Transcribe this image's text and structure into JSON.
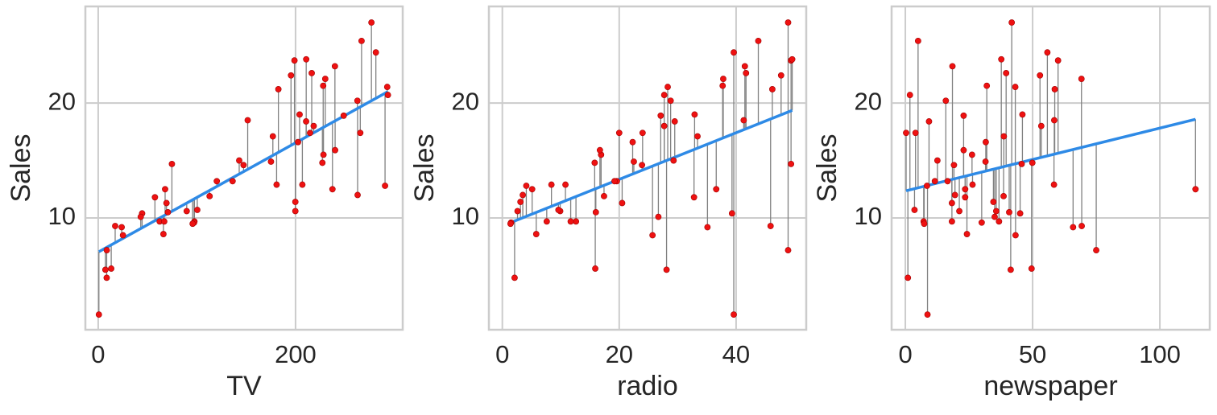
{
  "chart_data": [
    {
      "type": "scatter",
      "xlabel": "TV",
      "ylabel": "Sales",
      "xlim": [
        -13,
        308.6
      ],
      "ylim": [
        0.28,
        28.4
      ],
      "xticks": [
        0,
        200
      ],
      "yticks": [
        10,
        20
      ],
      "grid": true,
      "color": "#ee1111",
      "residual_color": "#808080",
      "fit": {
        "intercept": 7.0326,
        "slope": 0.04754,
        "color": "#2e8ae6"
      },
      "x": [
        230.1,
        44.5,
        17.2,
        151.5,
        180.8,
        8.7,
        57.5,
        120.2,
        8.6,
        199.8,
        66.1,
        214.7,
        23.8,
        97.5,
        204.1,
        195.4,
        67.8,
        281.4,
        69.2,
        147.3,
        218.4,
        237.4,
        13.2,
        228.3,
        62.3,
        262.9,
        142.9,
        240.1,
        248.8,
        70.6,
        292.9,
        112.9,
        97.2,
        265.6,
        95.7,
        290.7,
        266.9,
        74.7,
        43.1,
        228,
        202.5,
        177,
        293.6,
        206.9,
        25.1,
        175.1,
        89.7,
        239.9,
        227.2,
        66.9,
        199.8,
        100.4,
        216.4,
        182.6,
        262.7,
        198.9,
        7.3,
        136.2,
        210.8,
        210.7,
        0.7,
        276.9
      ],
      "values": [
        22.1,
        10.4,
        9.3,
        18.5,
        12.9,
        7.2,
        11.8,
        13.2,
        4.8,
        10.6,
        8.6,
        17.4,
        9.2,
        9.7,
        19,
        22.4,
        12.5,
        24.4,
        11.3,
        14.6,
        18,
        12.5,
        5.6,
        15.5,
        9.7,
        12,
        15,
        15.9,
        18.9,
        10.5,
        21.4,
        11.9,
        9.6,
        17.4,
        9.5,
        12.8,
        25.4,
        14.7,
        10.1,
        21.5,
        16.6,
        17.1,
        20.7,
        12.9,
        8.5,
        14.9,
        10.6,
        23.2,
        14.8,
        9.7,
        11.4,
        10.7,
        22.6,
        21.2,
        20.2,
        23.7,
        5.5,
        13.2,
        23.8,
        18.4,
        1.6,
        27
      ]
    },
    {
      "type": "scatter",
      "xlabel": "radio",
      "ylabel": "Sales",
      "xlim": [
        -2.3,
        52.0
      ],
      "ylim": [
        0.28,
        28.4
      ],
      "xticks": [
        0,
        20,
        40
      ],
      "yticks": [
        10,
        20
      ],
      "grid": true,
      "color": "#ee1111",
      "residual_color": "#808080",
      "fit": {
        "intercept": 9.312,
        "slope": 0.2025,
        "color": "#2e8ae6"
      },
      "x": [
        37.8,
        39.3,
        45.9,
        41.3,
        10.8,
        48.9,
        32.8,
        19.6,
        2.1,
        2.6,
        5.8,
        24,
        35.1,
        7.6,
        32.9,
        47.7,
        36.6,
        39.6,
        20.5,
        23.9,
        27.7,
        5.1,
        15.9,
        16.9,
        12.6,
        3.5,
        29.3,
        16.7,
        27.1,
        16,
        28.3,
        17.4,
        1.5,
        20,
        1.4,
        4.1,
        43.8,
        49.4,
        26.7,
        37.7,
        22.3,
        33.4,
        27.7,
        8.4,
        25.7,
        22.5,
        9.9,
        41.5,
        15.8,
        11.7,
        3.1,
        9.6,
        41.7,
        46.2,
        28.8,
        49.4,
        28.1,
        19.2,
        49.6,
        29.5,
        39.6,
        48.9
      ],
      "values": [
        22.1,
        10.4,
        9.3,
        18.5,
        12.9,
        7.2,
        11.8,
        13.2,
        4.8,
        10.6,
        8.6,
        17.4,
        9.2,
        9.7,
        19,
        22.4,
        12.5,
        24.4,
        11.3,
        14.6,
        18,
        12.5,
        5.6,
        15.5,
        9.7,
        12,
        15,
        15.9,
        18.9,
        10.5,
        21.4,
        11.9,
        9.6,
        17.4,
        9.5,
        12.8,
        25.4,
        14.7,
        10.1,
        21.5,
        16.6,
        17.1,
        20.7,
        12.9,
        8.5,
        14.9,
        10.6,
        23.2,
        14.8,
        9.7,
        11.4,
        10.7,
        22.6,
        21.2,
        20.2,
        23.7,
        5.5,
        13.2,
        23.8,
        18.4,
        1.6,
        27
      ]
    },
    {
      "type": "scatter",
      "xlabel": "newspaper",
      "ylabel": "Sales",
      "xlim": [
        -5.4,
        119.6
      ],
      "ylim": [
        0.28,
        28.4
      ],
      "xticks": [
        0,
        50,
        100
      ],
      "yticks": [
        10,
        20
      ],
      "grid": true,
      "color": "#ee1111",
      "residual_color": "#808080",
      "fit": {
        "intercept": 12.351,
        "slope": 0.0547,
        "color": "#2e8ae6"
      },
      "x": [
        69.2,
        45.1,
        69.3,
        58.5,
        58.4,
        75,
        23.5,
        11.6,
        1,
        21.2,
        24.2,
        4,
        65.9,
        7.2,
        46,
        52.9,
        114,
        55.8,
        18.3,
        19.1,
        53.4,
        23.5,
        49.6,
        26.2,
        18.3,
        19.5,
        12.6,
        22.9,
        22.9,
        40.8,
        43.2,
        38.6,
        30,
        0.3,
        7.4,
        8.5,
        5,
        45.7,
        35.1,
        32,
        31.6,
        38.7,
        1.8,
        26.4,
        43.3,
        31.5,
        35.7,
        18.5,
        49.9,
        36.8,
        34.6,
        3.6,
        39.6,
        58.7,
        15.9,
        60,
        41.4,
        16.6,
        37.7,
        9.3,
        8.7,
        41.8
      ],
      "values": [
        22.1,
        10.4,
        9.3,
        18.5,
        12.9,
        7.2,
        11.8,
        13.2,
        4.8,
        10.6,
        8.6,
        17.4,
        9.2,
        9.7,
        19,
        22.4,
        12.5,
        24.4,
        11.3,
        14.6,
        18,
        12.5,
        5.6,
        15.5,
        9.7,
        12,
        15,
        15.9,
        18.9,
        10.5,
        21.4,
        11.9,
        9.6,
        17.4,
        9.5,
        12.8,
        25.4,
        14.7,
        10.1,
        21.5,
        16.6,
        17.1,
        20.7,
        12.9,
        8.5,
        14.9,
        10.6,
        23.2,
        14.8,
        9.7,
        11.4,
        10.7,
        22.6,
        21.2,
        20.2,
        23.7,
        5.5,
        13.2,
        23.8,
        18.4,
        1.6,
        27
      ]
    }
  ]
}
